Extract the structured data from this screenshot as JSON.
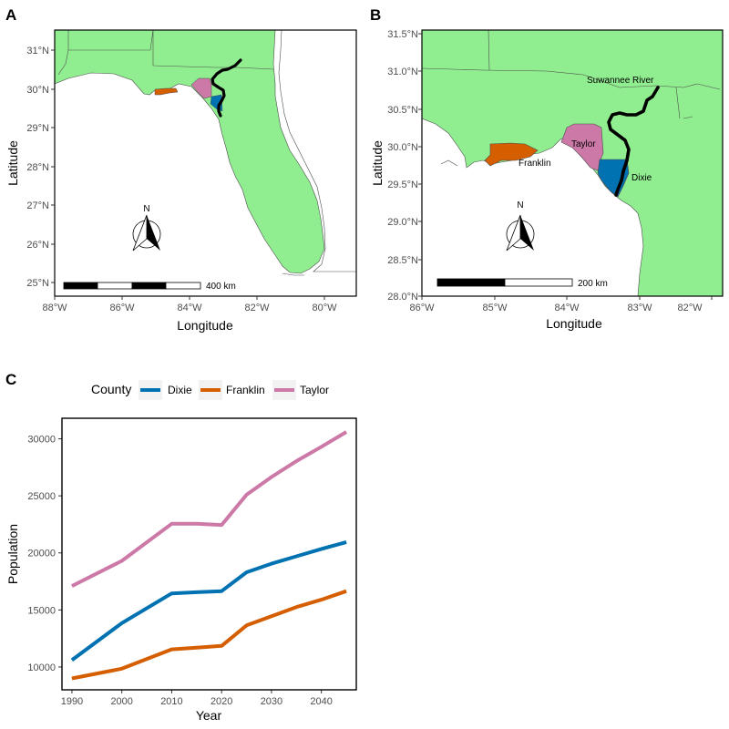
{
  "panels": {
    "a": {
      "letter": "A",
      "x_ticks": [
        "88°W",
        "86°W",
        "84°W",
        "82°W",
        "80°W"
      ],
      "y_ticks": [
        "31°N",
        "30°N",
        "29°N",
        "28°N",
        "27°N",
        "26°N",
        "25°N"
      ],
      "xlabel": "Longitude",
      "ylabel": "Latitude",
      "north_label": "N",
      "scale_label": "400 km"
    },
    "b": {
      "letter": "B",
      "x_ticks": [
        "86°W",
        "85°W",
        "84°W",
        "83°W",
        "82°W"
      ],
      "y_ticks": [
        "31.5°N",
        "31.0°N",
        "30.5°N",
        "30.0°N",
        "29.5°N",
        "29.0°N",
        "28.5°N",
        "28.0°N"
      ],
      "xlabel": "Longitude",
      "ylabel": "Latitude",
      "north_label": "N",
      "scale_label": "200 km",
      "labels": {
        "river": "Suwannee River",
        "taylor": "Taylor",
        "franklin": "Franklin",
        "dixie": "Dixie"
      }
    },
    "c": {
      "letter": "C"
    }
  },
  "colors": {
    "land": "#90EE90",
    "water": "#ffffff",
    "dixie": "#0072B2",
    "franklin": "#D55E00",
    "taylor": "#CC79A7",
    "river": "#000000"
  },
  "chart_data": {
    "type": "line",
    "xlabel": "Year",
    "ylabel": "Population",
    "legend_title": "County",
    "legend_position": "top",
    "xlim": [
      1988,
      2047
    ],
    "ylim": [
      8000,
      31800
    ],
    "x_ticks": [
      1990,
      2000,
      2010,
      2020,
      2030,
      2040
    ],
    "y_ticks": [
      10000,
      15000,
      20000,
      25000,
      30000
    ],
    "x": [
      1990,
      2000,
      2010,
      2015,
      2020,
      2025,
      2030,
      2035,
      2040,
      2045
    ],
    "series": [
      {
        "name": "Dixie",
        "color": "#0072B2",
        "values": [
          10600,
          13850,
          16450,
          16550,
          16650,
          18300,
          19050,
          19700,
          20350,
          20950
        ]
      },
      {
        "name": "Franklin",
        "color": "#D55E00",
        "values": [
          9000,
          9850,
          11550,
          11700,
          11850,
          13650,
          14450,
          15250,
          15900,
          16650
        ]
      },
      {
        "name": "Taylor",
        "color": "#CC79A7",
        "values": [
          17100,
          19300,
          22550,
          22550,
          22450,
          25100,
          26650,
          28050,
          29300,
          30600
        ]
      }
    ]
  }
}
